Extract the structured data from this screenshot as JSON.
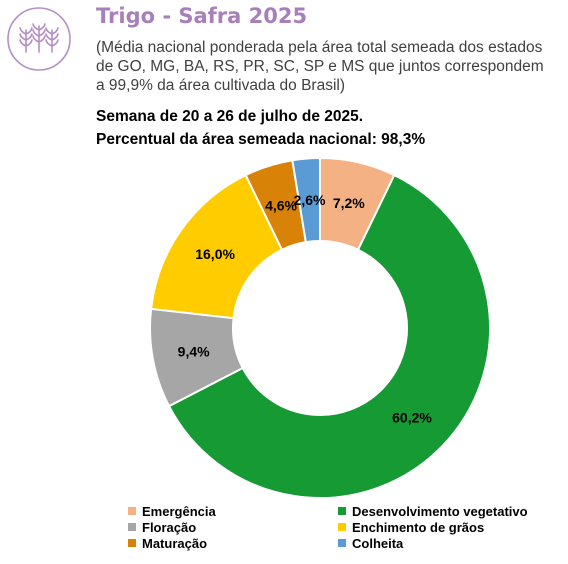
{
  "header": {
    "title": "Trigo - Safra 2025",
    "subtitle": "(Média nacional ponderada pela área total semeada dos estados de GO, MG, BA, RS, PR, SC, SP e MS que juntos correspondem a 99,9% da área cultivada do Brasil)",
    "week": "Semana de 20 a 26 de julho de 2025.",
    "percent_sown": "Percentual da área semeada nacional: 98,3%"
  },
  "logo_icon": "wheat-icon",
  "chart_data": {
    "type": "pie",
    "donut": true,
    "categories": [
      "Emergência",
      "Desenvolvimento vegetativo",
      "Floração",
      "Enchimento de grãos",
      "Maturação",
      "Colheita"
    ],
    "values": [
      7.2,
      60.2,
      9.4,
      16.0,
      4.6,
      2.6
    ],
    "labels": [
      "7,2%",
      "60,2%",
      "9,4%",
      "16,0%",
      "4,6%",
      "2,6%"
    ],
    "colors": [
      "#f4b183",
      "#159a34",
      "#a6a6a6",
      "#ffcc00",
      "#d98208",
      "#5b9bd5"
    ],
    "legend_position": "bottom"
  }
}
